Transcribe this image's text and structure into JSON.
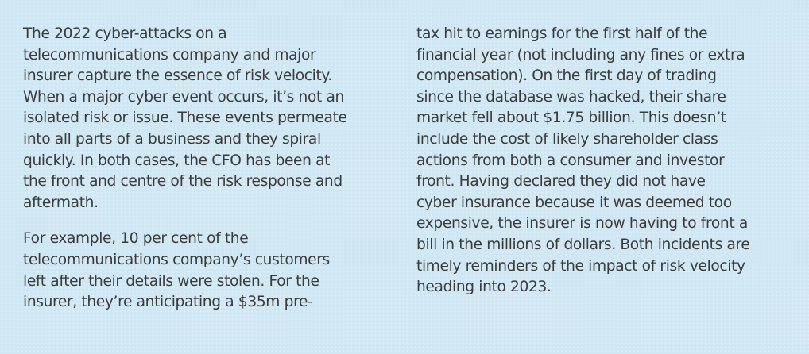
{
  "article": {
    "left_column": {
      "paragraph_1": [
        "The 2022 cyber-attacks on a",
        "telecommunications company and major",
        "insurer capture the essence of risk velocity.",
        "When a major cyber event occurs, it’s not an",
        "isolated risk or issue. These events permeate",
        "into all parts of a business and they spiral",
        "quickly. In both cases, the CFO has been at",
        "the front and centre of the risk response and",
        "aftermath."
      ],
      "paragraph_2": [
        "For example, 10 per cent of the",
        "telecommunications company’s customers",
        "left after their details were stolen. For the",
        "insurer, they’re anticipating a $35m pre-"
      ]
    },
    "right_column": {
      "paragraph_2_cont": [
        "tax hit to earnings for the first half of the",
        "financial year (not including any fines or extra",
        "compensation). On the first day of trading",
        "since the database was hacked, their share",
        "market fell about $1.75 billion. This doesn’t",
        "include the cost of likely shareholder class",
        "actions from both a consumer and investor",
        "front. Having declared they did not have",
        "cyber insurance because it was deemed too",
        "expensive, the insurer is now having to front a",
        "bill in the millions of dollars. Both incidents are",
        "timely reminders of the impact of risk velocity",
        "heading into 2023."
      ]
    }
  }
}
